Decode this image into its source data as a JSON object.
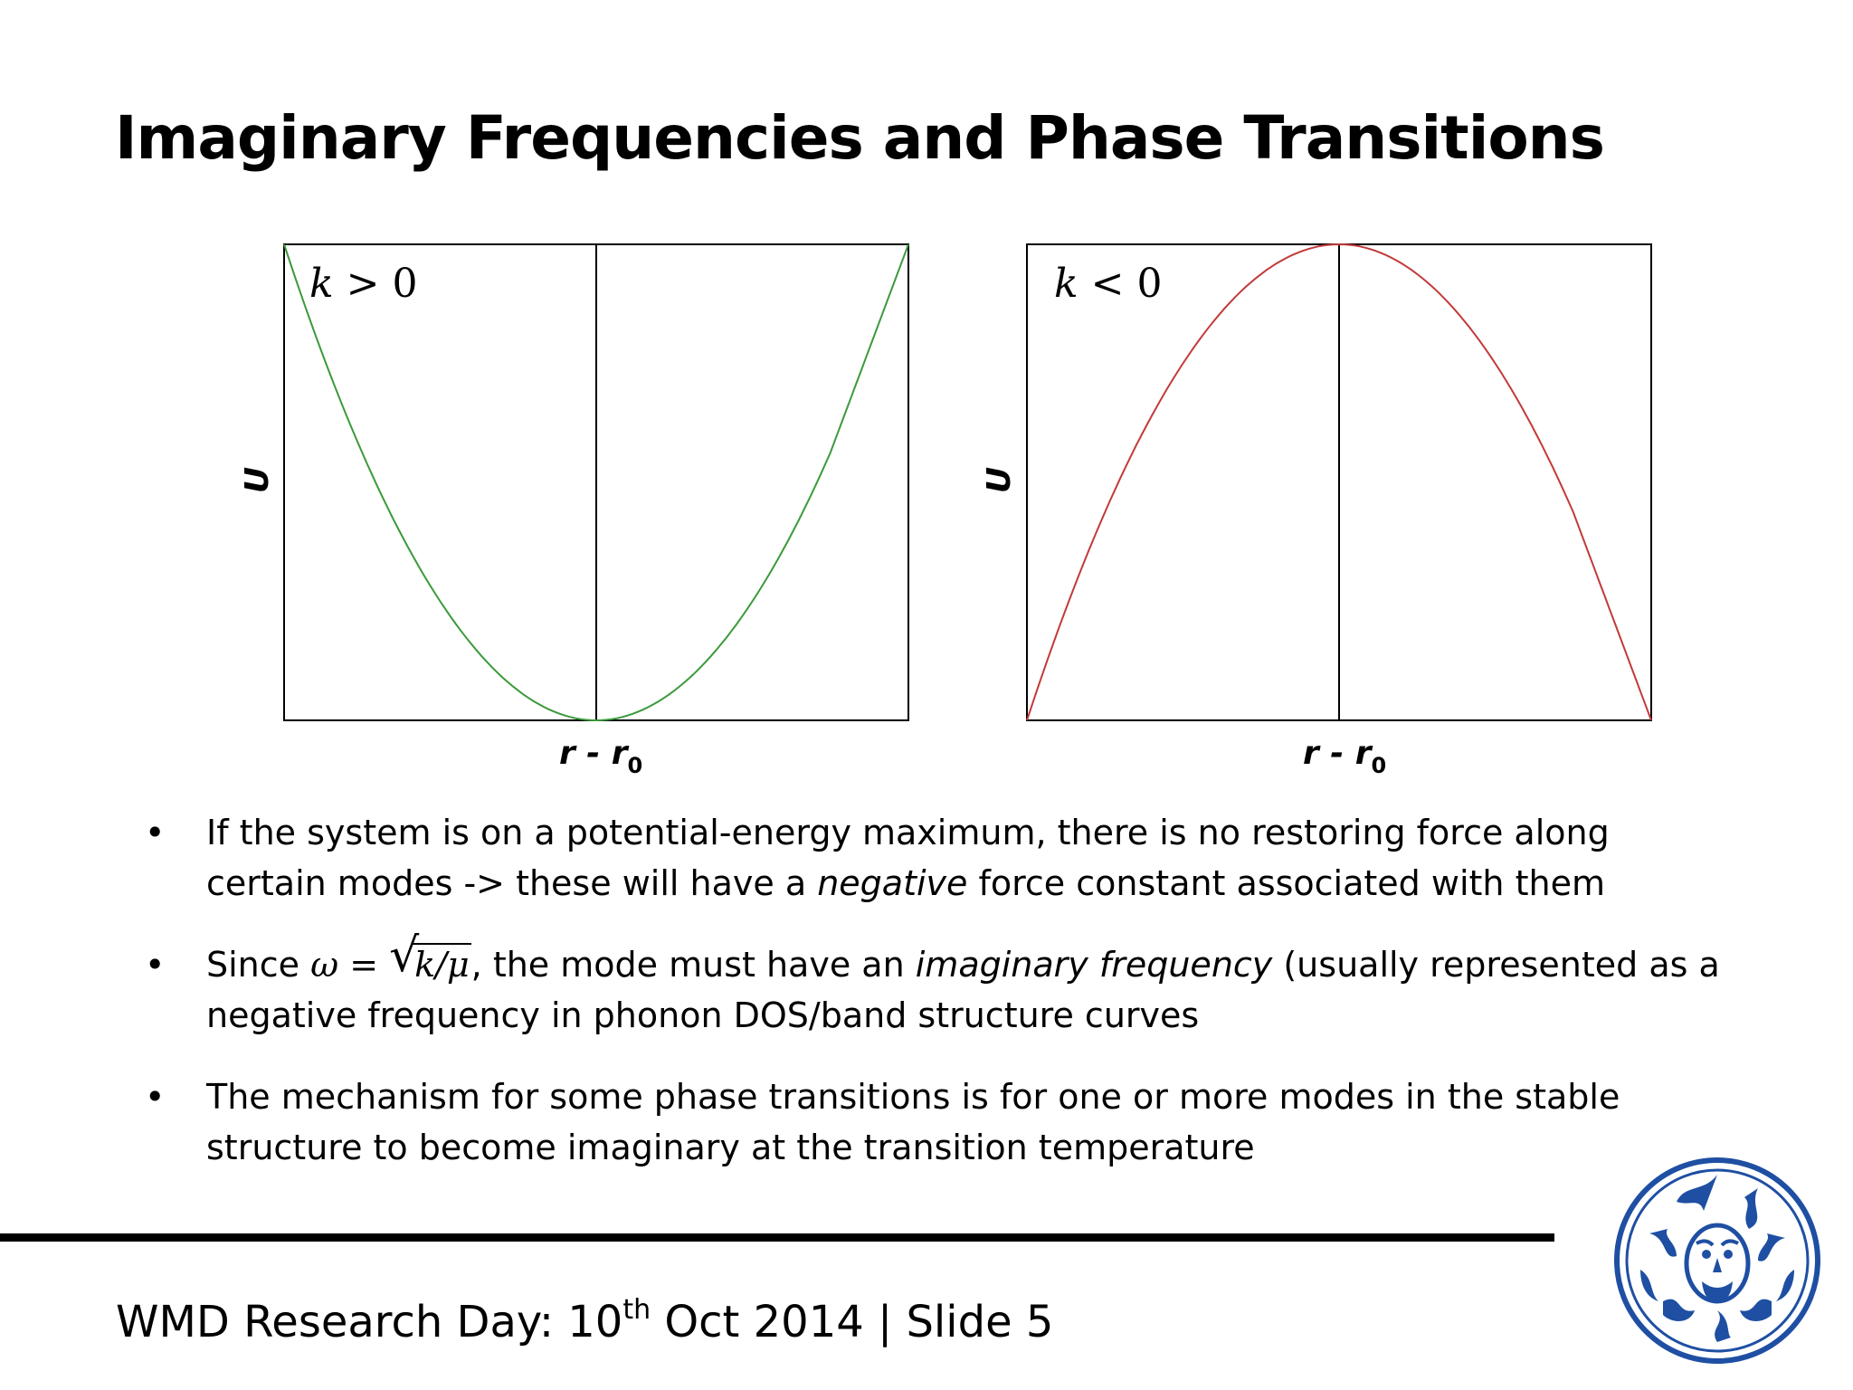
{
  "slide": {
    "title": "Imaginary Frequencies and Phase Transitions",
    "footer": {
      "prefix": "WMD Research Day: 10",
      "sup": "th",
      "suffix": " Oct 2014 | Slide 5"
    }
  },
  "chart_data": [
    {
      "type": "line",
      "title": "",
      "annotation": {
        "var": "k",
        "rest": " > 0"
      },
      "xlabel": {
        "main": "r - r",
        "sub": "0"
      },
      "ylabel": "U",
      "xlim": [
        -1,
        1
      ],
      "ylim": [
        0,
        1
      ],
      "grid": false,
      "center_line_x": 0,
      "series": [
        {
          "color": "#3a9a3a",
          "x": [
            -1,
            -0.75,
            -0.5,
            -0.25,
            0,
            0.25,
            0.5,
            0.75,
            1
          ],
          "y": [
            1,
            0.5625,
            0.25,
            0.0625,
            0,
            0.0625,
            0.25,
            0.5625,
            1
          ]
        }
      ]
    },
    {
      "type": "line",
      "title": "",
      "annotation": {
        "var": "k",
        "rest": " < 0"
      },
      "xlabel": {
        "main": "r - r",
        "sub": "0"
      },
      "ylabel": "U",
      "xlim": [
        -1,
        1
      ],
      "ylim": [
        0,
        1
      ],
      "grid": false,
      "center_line_x": 0,
      "series": [
        {
          "color": "#c23a3a",
          "x": [
            -1,
            -0.75,
            -0.5,
            -0.25,
            0,
            0.25,
            0.5,
            0.75,
            1
          ],
          "y": [
            0,
            0.4375,
            0.75,
            0.9375,
            1,
            0.9375,
            0.75,
            0.4375,
            0
          ]
        }
      ]
    }
  ],
  "bullets": [
    {
      "glyph": "•",
      "a": "If the system is on a potential-energy maximum, there is no restoring force along certain modes -> these will have a ",
      "em": "negative",
      "b": " force constant associated with them"
    },
    {
      "glyph": "•",
      "a": "Since ",
      "formula": {
        "lhs": "ω",
        "eq": " = ",
        "radical": "√",
        "arg": "k/μ"
      },
      "b": ", the mode must have an ",
      "em": "imaginary frequency",
      "c": " (usually represented as a negative frequency in phonon DOS/band structure curves"
    },
    {
      "glyph": "•",
      "a": "The mechanism for some phase transitions is for one or more modes in the stable structure to become imaginary at the transition temperature"
    }
  ],
  "logo": {
    "icon": "university-seal-icon",
    "color": "#1f4fa3"
  }
}
